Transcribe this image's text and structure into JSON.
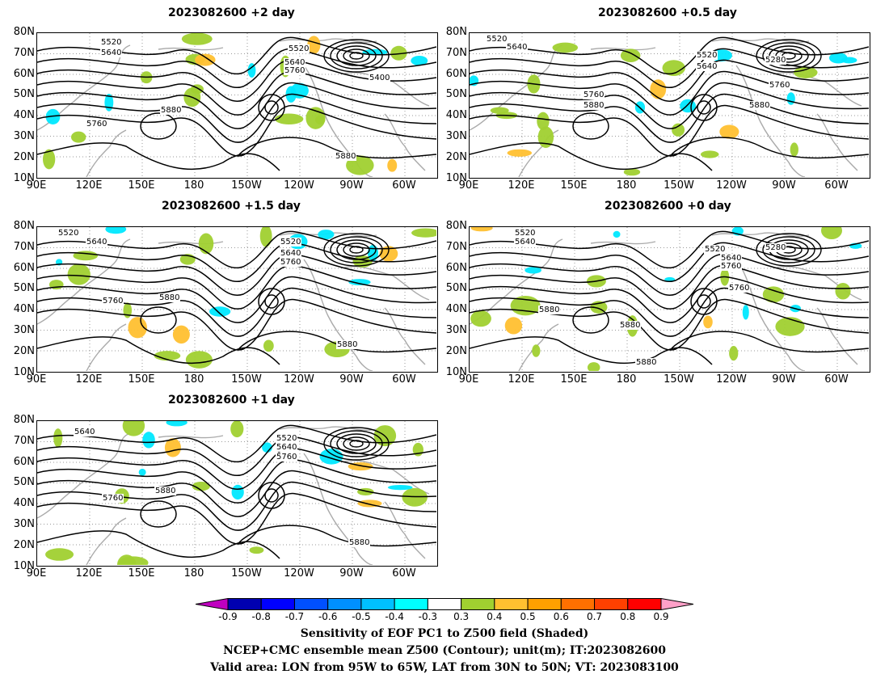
{
  "panels": [
    {
      "title": "2023082600 +2 day",
      "contour_labels": [
        "5520",
        "5640",
        "5520",
        "5640",
        "5760",
        "5400",
        "5880",
        "5760",
        "5880"
      ]
    },
    {
      "title": "2023082600 +0.5 day",
      "contour_labels": [
        "5520",
        "5640",
        "5520",
        "5640",
        "5280",
        "5760",
        "5880",
        "5760",
        "5880"
      ]
    },
    {
      "title": "2023082600 +1.5 day",
      "contour_labels": [
        "5520",
        "5640",
        "5520",
        "5640",
        "5760",
        "5760",
        "5880",
        "5880"
      ]
    },
    {
      "title": "2023082600 +0 day",
      "contour_labels": [
        "5520",
        "5640",
        "5520",
        "5640",
        "5760",
        "5280",
        "5760",
        "5880",
        "5880",
        "5880"
      ]
    },
    {
      "title": "2023082600 +1 day",
      "contour_labels": [
        "5640",
        "5520",
        "5640",
        "5760",
        "5760",
        "5880",
        "5880"
      ]
    }
  ],
  "y_axis_labels": [
    "80N",
    "70N",
    "60N",
    "50N",
    "40N",
    "30N",
    "20N",
    "10N"
  ],
  "x_axis_labels": [
    "90E",
    "120E",
    "150E",
    "180",
    "150W",
    "120W",
    "90W",
    "60W"
  ],
  "colorbar": {
    "labels": [
      "-0.9",
      "-0.8",
      "-0.7",
      "-0.6",
      "-0.5",
      "-0.4",
      "-0.3",
      "0.3",
      "0.4",
      "0.5",
      "0.6",
      "0.7",
      "0.8",
      "0.9"
    ],
    "colors": [
      "#c000c0",
      "#0000b0",
      "#0000ff",
      "#0050ff",
      "#0090ff",
      "#00c0ff",
      "#00ffff",
      "#ffffff",
      "#a0d030",
      "#ffc030",
      "#ffa000",
      "#ff7000",
      "#ff4000",
      "#ff0000",
      "#ffa0c8"
    ]
  },
  "caption": {
    "line1": "Sensitivity of EOF PC1 to Z500 field (Shaded)",
    "line2": "NCEP+CMC ensemble mean Z500 (Contour); unit(m); IT:2023082600",
    "line3": "Valid area: LON from 95W to 65W, LAT from 30N to 50N; VT: 2023083100"
  }
}
